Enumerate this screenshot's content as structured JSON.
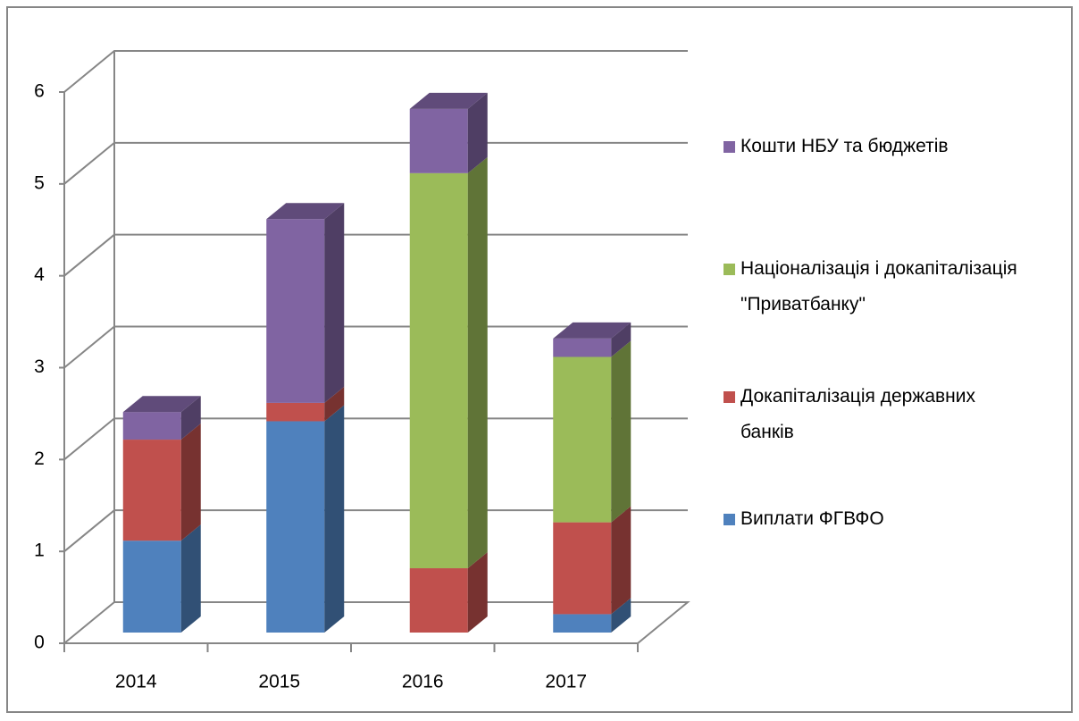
{
  "chart_data": {
    "type": "bar3d_stacked",
    "categories": [
      "2014",
      "2015",
      "2016",
      "2017"
    ],
    "series": [
      {
        "name": "Виплати ФГВФО",
        "color": "#4f81bd",
        "values": [
          1.0,
          2.3,
          0,
          0.2
        ]
      },
      {
        "name": "Докапіталізація державних банків",
        "color": "#c0504d",
        "values": [
          1.1,
          0.2,
          0.7,
          1.0
        ]
      },
      {
        "name": "Націоналізація і докапіталізація \"Приватбанку\"",
        "color": "#9bbb59",
        "values": [
          0,
          0,
          4.3,
          1.8
        ]
      },
      {
        "name": "Кошти НБУ та бюджетів",
        "color": "#8064a2",
        "values": [
          0.3,
          2.0,
          0.7,
          0.2
        ]
      }
    ],
    "ylim": [
      0,
      6
    ],
    "yticks": [
      0,
      1,
      2,
      3,
      4,
      5,
      6
    ],
    "grid": true,
    "legend": "right"
  }
}
